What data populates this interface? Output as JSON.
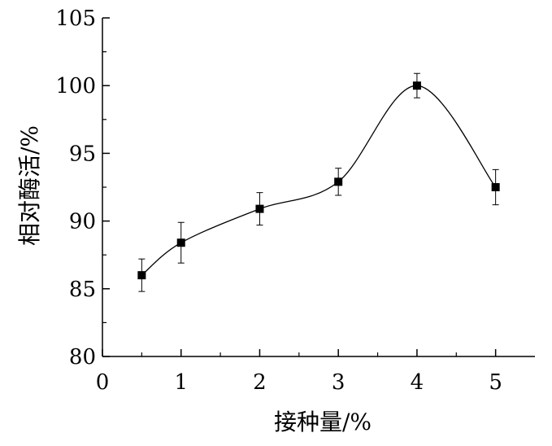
{
  "chart_data": {
    "type": "line",
    "title": "",
    "xlabel": "接种量/%",
    "ylabel": "相对酶活/%",
    "xlim": [
      0,
      5.5
    ],
    "ylim": [
      80,
      105
    ],
    "x_ticks": [
      0,
      1,
      2,
      3,
      4,
      5
    ],
    "x_tick_labels": [
      "0",
      "1",
      "2",
      "3",
      "4",
      "5"
    ],
    "y_ticks": [
      80,
      85,
      90,
      95,
      100,
      105
    ],
    "y_tick_labels": [
      "80",
      "85",
      "90",
      "95",
      "100",
      "105"
    ],
    "grid": false,
    "legend": "none",
    "smooth_curve": true,
    "marker": "square",
    "series": [
      {
        "x": [
          0.5,
          1,
          2,
          3,
          4,
          5
        ],
        "y": [
          86.0,
          88.4,
          90.9,
          92.9,
          100.0,
          92.5
        ],
        "error": [
          1.2,
          1.5,
          1.2,
          1.0,
          0.9,
          1.3
        ]
      }
    ],
    "colors": {
      "line": "#000000",
      "marker": "#000000"
    }
  }
}
